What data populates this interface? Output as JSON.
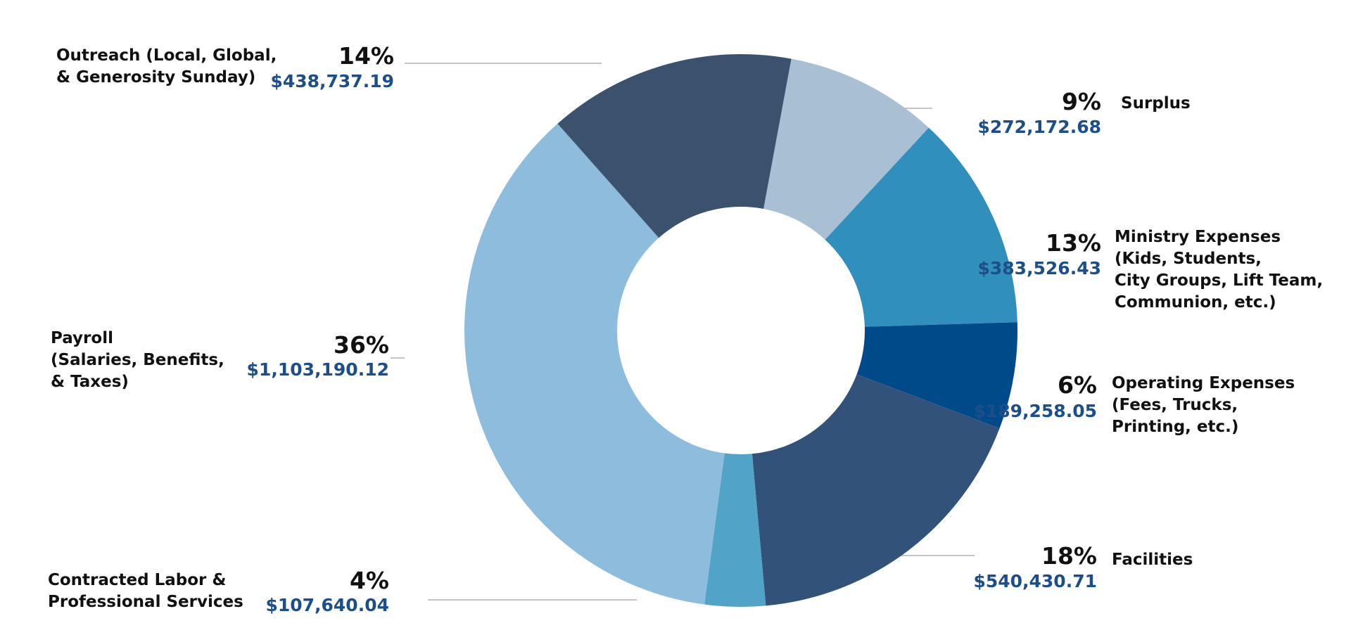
{
  "chart_data": {
    "type": "pie",
    "donut": true,
    "slices": [
      {
        "label_lines": [
          "Surplus"
        ],
        "percent": "9%",
        "amount": "$272,172.68",
        "value": 272172.68,
        "color": "#a8bfd4"
      },
      {
        "label_lines": [
          "Ministry Expenses",
          "(Kids, Students,",
          "City Groups, Lift Team,",
          "Communion, etc.)"
        ],
        "percent": "13%",
        "amount": "$383,526.43",
        "value": 383526.43,
        "color": "#318fbd"
      },
      {
        "label_lines": [
          "Operating Expenses",
          "(Fees, Trucks,",
          "Printing, etc.)"
        ],
        "percent": "6%",
        "amount": "$189,258.05",
        "value": 189258.05,
        "color": "#004a8a"
      },
      {
        "label_lines": [
          "Facilities"
        ],
        "percent": "18%",
        "amount": "$540,430.71",
        "value": 540430.71,
        "color": "#32527a"
      },
      {
        "label_lines": [
          "Contracted Labor &",
          "Professional Services"
        ],
        "percent": "4%",
        "amount": "$107,640.04",
        "value": 107640.04,
        "color": "#51a3c7"
      },
      {
        "label_lines": [
          "Payroll",
          "(Salaries, Benefits,",
          "& Taxes)"
        ],
        "percent": "36%",
        "amount": "$1,103,190.12",
        "value": 1103190.12,
        "color": "#8ebcdd"
      },
      {
        "label_lines": [
          "Outreach (Local, Global,",
          "& Generosity Sunday)"
        ],
        "percent": "14%",
        "amount": "$438,737.19",
        "value": 438737.19,
        "color": "#3c516e"
      }
    ]
  }
}
